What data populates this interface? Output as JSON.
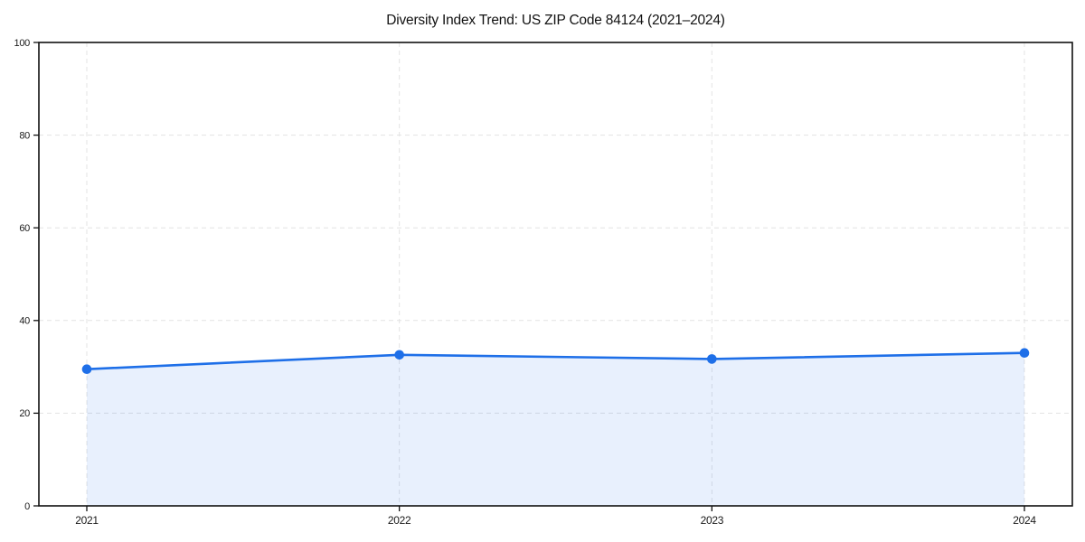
{
  "chart_data": {
    "type": "area",
    "title": "Diversity Index Trend: US ZIP Code 84124 (2021–2024)",
    "x": [
      "2021",
      "2022",
      "2023",
      "2024"
    ],
    "series": [
      {
        "name": "Diversity Index",
        "values": [
          29.5,
          32.6,
          31.7,
          33.0
        ]
      }
    ],
    "xlabel": "",
    "ylabel": "",
    "ylim": [
      0,
      100
    ],
    "yticks": [
      0,
      20,
      40,
      60,
      80,
      100
    ],
    "grid": true,
    "grid_style": "dashed",
    "legend": "none",
    "marker": "circle",
    "colors": {
      "line": "#1e6fe8",
      "marker": "#1e6fe8",
      "fill": "#1e6fe8",
      "fill_opacity": 0.1,
      "gridline": "#e3e3e3",
      "axis": "#111111",
      "tick_label": "#1a1a1a",
      "background": "#ffffff"
    }
  }
}
